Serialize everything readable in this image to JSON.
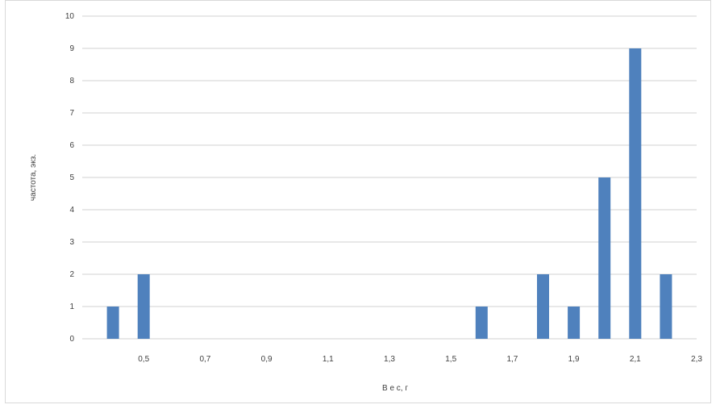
{
  "chart_data": {
    "type": "bar",
    "xlabel": "В е с,  г",
    "ylabel": "частота, экз.",
    "x_tick_labels": [
      "0,5",
      "0,7",
      "0,9",
      "1,1",
      "1,3",
      "1,5",
      "1,7",
      "1,9",
      "2,1",
      "2,3"
    ],
    "x_tick_values": [
      0.5,
      0.7,
      0.9,
      1.1,
      1.3,
      1.5,
      1.7,
      1.9,
      2.1,
      2.3
    ],
    "x_range": [
      0.3,
      2.3
    ],
    "x": [
      0.4,
      0.5,
      1.6,
      1.8,
      1.9,
      2.0,
      2.1,
      2.2
    ],
    "values": [
      1,
      2,
      1,
      2,
      1,
      5,
      9,
      2
    ],
    "ylim": [
      0,
      10
    ],
    "y_ticks": [
      0,
      1,
      2,
      3,
      4,
      5,
      6,
      7,
      8,
      9,
      10
    ],
    "grid": true,
    "bar_color": "#4f81bd",
    "grid_color": "#d0d0d0"
  }
}
